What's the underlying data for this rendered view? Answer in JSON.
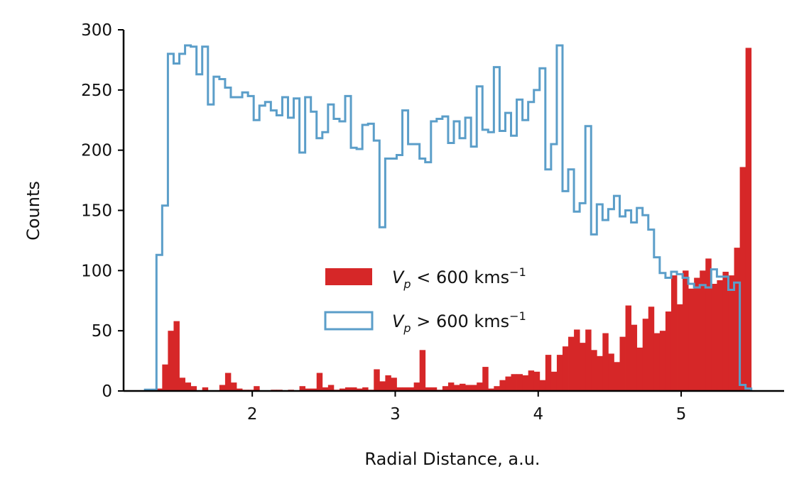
{
  "chart_data": {
    "type": "histogram",
    "xlabel": "Radial Distance, a.u.",
    "ylabel": "Counts",
    "xlim": [
      1.1,
      5.72
    ],
    "ylim": [
      0,
      300
    ],
    "xticks": [
      2,
      3,
      4,
      5
    ],
    "yticks": [
      0,
      50,
      100,
      150,
      200,
      250,
      300
    ],
    "bin_edges_start": 1.25,
    "bin_width": 0.04,
    "legend_position": "center-right",
    "grid": false,
    "series": [
      {
        "name": "V_p < 600 kms^-1",
        "label_main": "V",
        "label_sub": "p",
        "label_rest": " < 600 kms",
        "label_sup": "−1",
        "style": "filled",
        "color": "#d62728",
        "values": [
          0,
          0,
          2,
          22,
          50,
          58,
          11,
          7,
          4,
          0,
          3,
          0,
          0,
          5,
          15,
          7,
          2,
          1,
          1,
          4,
          0,
          0,
          1,
          1,
          0,
          1,
          0,
          4,
          2,
          2,
          15,
          3,
          5,
          1,
          2,
          3,
          3,
          2,
          3,
          1,
          18,
          8,
          13,
          11,
          3,
          3,
          3,
          7,
          34,
          3,
          3,
          1,
          4,
          7,
          5,
          6,
          5,
          5,
          7,
          20,
          2,
          4,
          9,
          12,
          14,
          14,
          13,
          17,
          16,
          9,
          30,
          16,
          30,
          37,
          45,
          51,
          40,
          51,
          34,
          29,
          48,
          31,
          24,
          45,
          71,
          55,
          36,
          60,
          70,
          48,
          50,
          66,
          96,
          72,
          100,
          85,
          94,
          100,
          110,
          89,
          92,
          99,
          96,
          119,
          186,
          285
        ]
      },
      {
        "name": "V_p > 600 kms^-1",
        "label_main": "V",
        "label_sub": "p",
        "label_rest": " > 600 kms",
        "label_sup": "−1",
        "style": "step",
        "color": "#5b9ec9",
        "values": [
          1,
          1,
          113,
          154,
          280,
          272,
          280,
          287,
          286,
          263,
          286,
          238,
          261,
          259,
          252,
          244,
          244,
          248,
          245,
          225,
          237,
          240,
          233,
          229,
          244,
          227,
          243,
          198,
          244,
          232,
          210,
          215,
          238,
          226,
          224,
          245,
          202,
          201,
          221,
          222,
          208,
          136,
          193,
          193,
          196,
          233,
          205,
          205,
          193,
          190,
          224,
          226,
          228,
          206,
          224,
          210,
          227,
          203,
          253,
          217,
          215,
          269,
          216,
          231,
          212,
          242,
          225,
          240,
          250,
          268,
          184,
          205,
          287,
          166,
          184,
          149,
          156,
          220,
          130,
          155,
          142,
          151,
          162,
          145,
          150,
          140,
          152,
          146,
          134,
          111,
          98,
          94,
          99,
          97,
          94,
          89,
          86,
          88,
          86,
          101,
          95,
          95,
          84,
          90,
          5,
          2
        ]
      }
    ]
  }
}
